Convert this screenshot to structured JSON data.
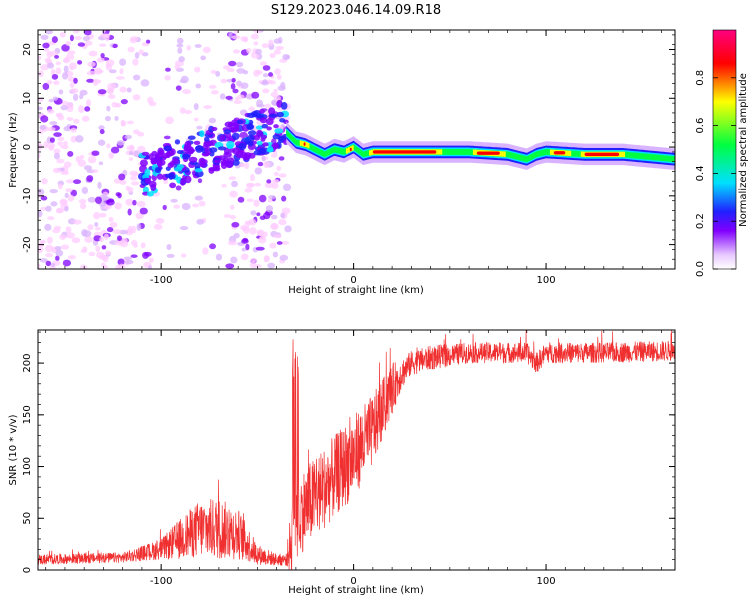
{
  "title": "S129.2023.046.14.09.R18",
  "colors": {
    "snr_line": "#f03030",
    "colormap": [
      "#ffffff",
      "#ffccff",
      "#d9b3ff",
      "#8000ff",
      "#2020ff",
      "#00e0ff",
      "#00ff40",
      "#ffff00",
      "#ff0000",
      "#ff0080"
    ]
  },
  "chart_data": [
    {
      "id": "spectrogram",
      "type": "heatmap",
      "xlabel": "Height of straight line (km)",
      "ylabel": "Frequency (Hz)",
      "xlim": [
        -164,
        167
      ],
      "ylim": [
        -25,
        24
      ],
      "xticks": [
        -100,
        0,
        100
      ],
      "xtick_labels": [
        "-100",
        "0",
        "100"
      ],
      "yticks": [
        -20,
        -10,
        0,
        10,
        20
      ],
      "ytick_labels": [
        "-20",
        "-10",
        "0",
        "10",
        "20"
      ],
      "colorbar": {
        "label": "Normalized spectral amplitude",
        "range": [
          0,
          1
        ],
        "ticks": [
          0.0,
          0.2,
          0.4,
          0.6,
          0.8
        ],
        "tick_labels": [
          "0.0",
          "0.2",
          "0.4",
          "0.6",
          "0.8"
        ]
      },
      "ridge": {
        "x": [
          -35,
          -30,
          -25,
          -20,
          -15,
          -10,
          -5,
          0,
          5,
          10,
          20,
          40,
          60,
          80,
          85,
          90,
          95,
          100,
          120,
          140,
          167
        ],
        "frequency": [
          3,
          1,
          0.5,
          -0.5,
          -1.5,
          -0.5,
          -1,
          0,
          -1.5,
          -1,
          -1,
          -1,
          -1,
          -1.5,
          -2,
          -2.5,
          -1.5,
          -1,
          -1.5,
          -1.5,
          -2.5
        ]
      }
    },
    {
      "id": "snr",
      "type": "line",
      "xlabel": "Height of straight line (km)",
      "ylabel": "SNR (10 * v/v)",
      "xlim": [
        -164,
        167
      ],
      "ylim": [
        0,
        232
      ],
      "xticks": [
        -100,
        0,
        100
      ],
      "xtick_labels": [
        "-100",
        "0",
        "100"
      ],
      "yticks": [
        0,
        50,
        100,
        150,
        200
      ],
      "ytick_labels": [
        "0",
        "50",
        "100",
        "150",
        "200"
      ],
      "envelope": {
        "x": [
          -164,
          -120,
          -100,
          -90,
          -80,
          -70,
          -60,
          -50,
          -40,
          -35,
          -32,
          -30,
          -28,
          -25,
          -20,
          -10,
          0,
          10,
          20,
          25,
          30,
          40,
          60,
          90,
          95,
          100,
          130,
          167
        ],
        "mean": [
          10,
          12,
          20,
          30,
          40,
          40,
          35,
          15,
          10,
          10,
          30,
          60,
          55,
          60,
          70,
          90,
          110,
          135,
          175,
          190,
          200,
          205,
          210,
          210,
          200,
          210,
          210,
          212
        ],
        "noise": [
          5,
          5,
          10,
          20,
          28,
          30,
          25,
          10,
          6,
          6,
          40,
          60,
          40,
          40,
          40,
          40,
          40,
          35,
          25,
          15,
          12,
          12,
          10,
          10,
          10,
          10,
          10,
          10
        ]
      }
    }
  ]
}
